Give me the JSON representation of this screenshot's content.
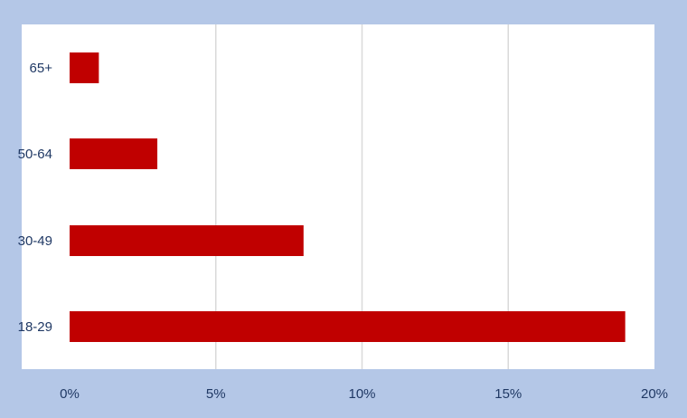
{
  "chart_data": {
    "type": "bar",
    "orientation": "horizontal",
    "categories": [
      "18-29",
      "30-49",
      "50-64",
      "65+"
    ],
    "values": [
      19,
      8,
      3,
      1
    ],
    "value_unit": "%",
    "xlim": [
      0,
      20
    ],
    "x_ticks": [
      "0%",
      "5%",
      "10%",
      "15%",
      "20%"
    ],
    "title": "",
    "xlabel": "",
    "ylabel": "",
    "grid": "vertical",
    "legend": "none",
    "colors": {
      "bar": "#c00000",
      "background": "#b4c7e7",
      "plot_area": "#ffffff",
      "gridline": "#d9d9d9",
      "text": "#1f3864"
    }
  }
}
